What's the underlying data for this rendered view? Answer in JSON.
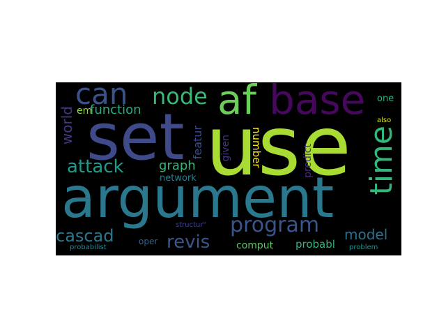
{
  "words": {
    "use": {
      "text": "use",
      "color": "#a8db34"
    },
    "set": {
      "text": "set",
      "color": "#3f4a8a"
    },
    "argument": {
      "text": "argument",
      "color": "#2a788e"
    },
    "af": {
      "text": "af",
      "color": "#6ccd5a"
    },
    "base": {
      "text": "base",
      "color": "#46085c"
    },
    "can": {
      "text": "can",
      "color": "#3b528b"
    },
    "node": {
      "text": "node",
      "color": "#38b977"
    },
    "time": {
      "text": "time",
      "color": "#33b67a"
    },
    "attack": {
      "text": "attack",
      "color": "#1e9b8a"
    },
    "program": {
      "text": "program",
      "color": "#3a548c"
    },
    "revis": {
      "text": "revis",
      "color": "#39568c"
    },
    "cascad": {
      "text": "cascad",
      "color": "#2a788e"
    },
    "graph": {
      "text": "graph",
      "color": "#35b779"
    },
    "function": {
      "text": "function",
      "color": "#25ab82"
    },
    "world": {
      "text": "world",
      "color": "#453882"
    },
    "model": {
      "text": "model",
      "color": "#2d718e"
    },
    "network": {
      "text": "network",
      "color": "#277f8e"
    },
    "featur": {
      "text": "featur",
      "color": "#3d4e8a"
    },
    "given": {
      "text": "given",
      "color": "#453581"
    },
    "number": {
      "text": "number",
      "color": "#fde725"
    },
    "predict": {
      "text": "predict",
      "color": "#472d7b"
    },
    "comput": {
      "text": "comput",
      "color": "#5ec962"
    },
    "probabl": {
      "text": "probabl",
      "color": "#2fb47c"
    },
    "one": {
      "text": "one",
      "color": "#31b57b"
    },
    "also": {
      "text": "also",
      "color": "#d8e219"
    },
    "em": {
      "text": "em",
      "color": "#8fd744"
    },
    "oper": {
      "text": "oper",
      "color": "#33638d"
    },
    "structur": {
      "text": "structur\"",
      "color": "#414487"
    },
    "probabilist": {
      "text": "probabilist",
      "color": "#26828e"
    },
    "problem": {
      "text": "problem",
      "color": "#21918c"
    }
  }
}
